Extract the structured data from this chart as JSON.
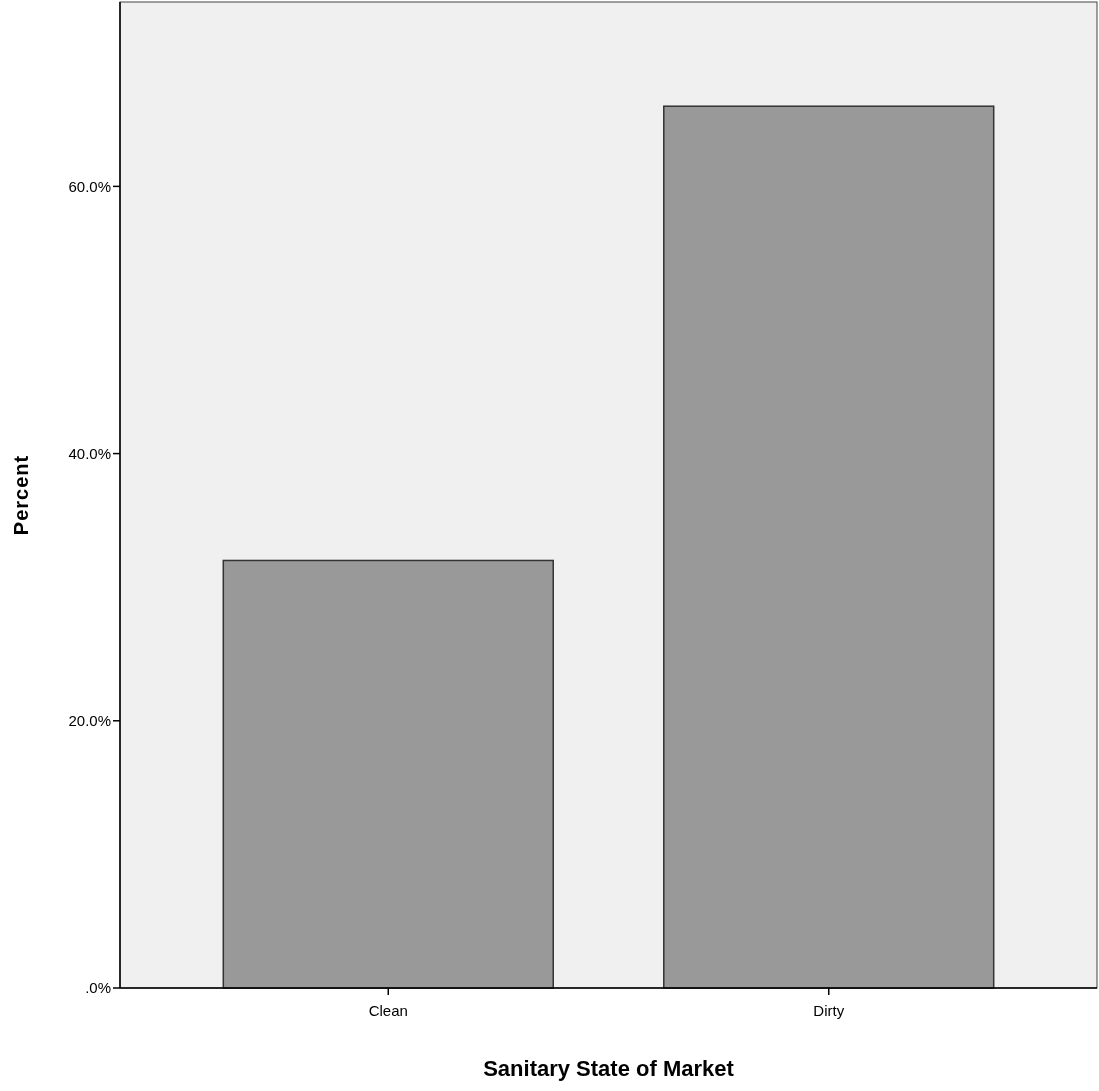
{
  "chart_data": {
    "type": "bar",
    "xlabel": "Sanitary State of Market",
    "ylabel": "Percent",
    "categories": [
      "Clean",
      "Dirty"
    ],
    "values": [
      32,
      66
    ],
    "color": "#999999",
    "ylim": [
      0,
      73.8
    ],
    "yticks": [
      {
        "value": 0,
        "label": ".0%"
      },
      {
        "value": 20,
        "label": "20.0%"
      },
      {
        "value": 40,
        "label": "40.0%"
      },
      {
        "value": 60,
        "label": "60.0%"
      }
    ],
    "grid": false
  }
}
